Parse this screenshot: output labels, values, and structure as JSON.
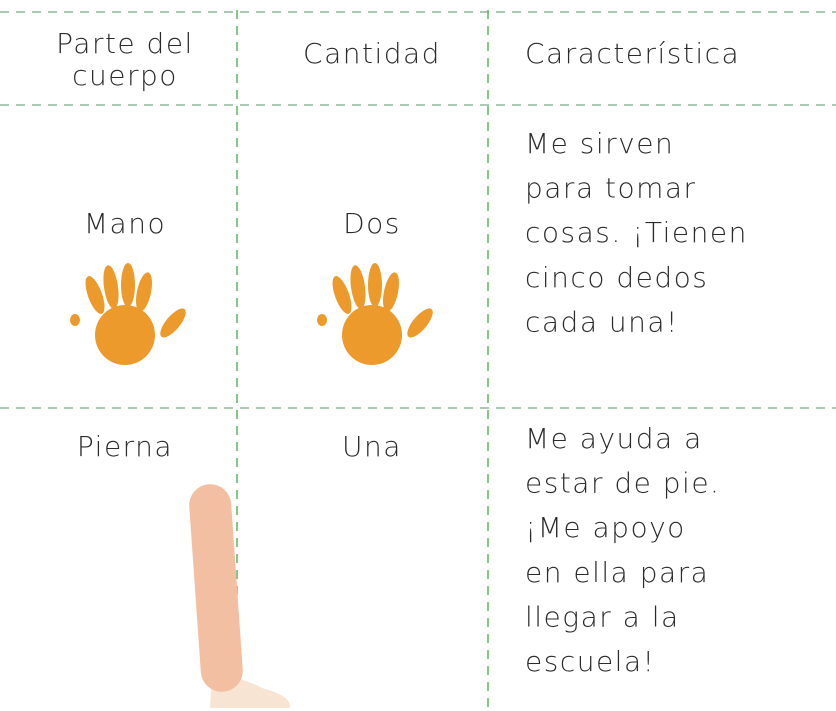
{
  "table": {
    "header": [
      [
        "Parte del",
        "cuerpo"
      ],
      [
        "Cantidad"
      ],
      [
        "Característica"
      ]
    ],
    "rows": [
      [
        [
          "Mano"
        ],
        [
          "Dos"
        ],
        [
          "Me sirven",
          "para tomar",
          "cosas. ¡Tienen",
          "cinco dedos",
          "cada una!"
        ]
      ],
      [
        [
          "Pierna"
        ],
        [
          "Una"
        ],
        [
          "Me ayuda a",
          "estar de pie.",
          "¡Me apoyo",
          "en ella para",
          "llegar a la",
          "escuela!"
        ]
      ]
    ]
  }
}
